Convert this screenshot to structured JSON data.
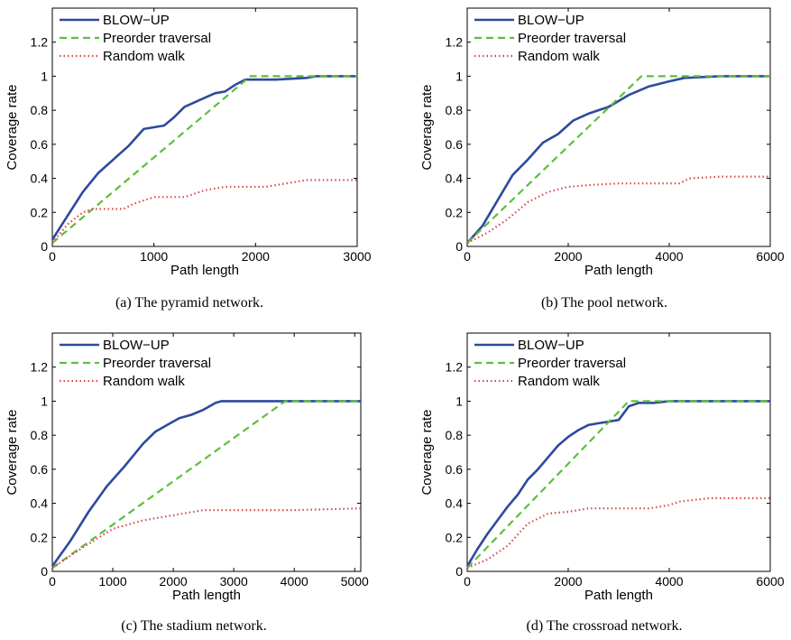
{
  "chart_data": [
    {
      "type": "line",
      "caption": "(a) The pyramid network.",
      "xlabel": "Path length",
      "ylabel": "Coverage rate",
      "xlim": [
        0,
        3000
      ],
      "ylim": [
        0,
        1.4
      ],
      "xticks": [
        0,
        1000,
        2000,
        3000
      ],
      "yticks": [
        0,
        0.2,
        0.4,
        0.6,
        0.8,
        1,
        1.2
      ],
      "grid": false,
      "legend": "top-left",
      "series": [
        {
          "name": "BLOW−UP",
          "color": "#2e4a9e",
          "style": "solid",
          "x": [
            0,
            150,
            300,
            450,
            600,
            750,
            900,
            1000,
            1100,
            1200,
            1300,
            1450,
            1600,
            1700,
            1800,
            1900,
            2200,
            2500,
            2600,
            3000
          ],
          "y": [
            0.04,
            0.18,
            0.32,
            0.43,
            0.51,
            0.59,
            0.69,
            0.7,
            0.71,
            0.76,
            0.82,
            0.86,
            0.9,
            0.91,
            0.95,
            0.98,
            0.98,
            0.99,
            1.0,
            1.0
          ]
        },
        {
          "name": "Preorder traversal",
          "color": "#5cbf3a",
          "style": "dashed",
          "x": [
            0,
            1950,
            3000
          ],
          "y": [
            0.02,
            1.0,
            1.0
          ]
        },
        {
          "name": "Random walk",
          "color": "#d94a4a",
          "style": "dotted",
          "x": [
            0,
            150,
            300,
            400,
            500,
            700,
            800,
            1000,
            1300,
            1500,
            1700,
            2100,
            2300,
            2500,
            3000
          ],
          "y": [
            0.02,
            0.13,
            0.2,
            0.22,
            0.22,
            0.22,
            0.25,
            0.29,
            0.29,
            0.33,
            0.35,
            0.35,
            0.37,
            0.39,
            0.39
          ]
        }
      ]
    },
    {
      "type": "line",
      "caption": "(b) The pool network.",
      "xlabel": "Path length",
      "ylabel": "Coverage rate",
      "xlim": [
        0,
        6000
      ],
      "ylim": [
        0,
        1.4
      ],
      "xticks": [
        0,
        2000,
        4000,
        6000
      ],
      "yticks": [
        0,
        0.2,
        0.4,
        0.6,
        0.8,
        1,
        1.2
      ],
      "grid": false,
      "legend": "top-left",
      "series": [
        {
          "name": "BLOW−UP",
          "color": "#2e4a9e",
          "style": "solid",
          "x": [
            0,
            300,
            600,
            900,
            1200,
            1500,
            1800,
            2100,
            2400,
            2800,
            3200,
            3600,
            4000,
            4300,
            5000,
            6000
          ],
          "y": [
            0.02,
            0.12,
            0.27,
            0.42,
            0.51,
            0.61,
            0.66,
            0.74,
            0.78,
            0.82,
            0.89,
            0.94,
            0.97,
            0.99,
            1.0,
            1.0
          ]
        },
        {
          "name": "Preorder traversal",
          "color": "#5cbf3a",
          "style": "dashed",
          "x": [
            0,
            3450,
            6000
          ],
          "y": [
            0.02,
            1.0,
            1.0
          ]
        },
        {
          "name": "Random walk",
          "color": "#d94a4a",
          "style": "dotted",
          "x": [
            0,
            400,
            800,
            1200,
            1600,
            2000,
            2400,
            3000,
            3600,
            4200,
            4400,
            5000,
            6000
          ],
          "y": [
            0.02,
            0.08,
            0.16,
            0.26,
            0.32,
            0.35,
            0.36,
            0.37,
            0.37,
            0.37,
            0.4,
            0.41,
            0.41
          ]
        }
      ]
    },
    {
      "type": "line",
      "caption": "(c) The stadium network.",
      "xlabel": "Path length",
      "ylabel": "Coverage rate",
      "xlim": [
        0,
        5100
      ],
      "ylim": [
        0,
        1.4
      ],
      "xticks": [
        0,
        1000,
        2000,
        3000,
        4000,
        5000
      ],
      "yticks": [
        0,
        0.2,
        0.4,
        0.6,
        0.8,
        1,
        1.2
      ],
      "grid": false,
      "legend": "top-left",
      "series": [
        {
          "name": "BLOW−UP",
          "color": "#2e4a9e",
          "style": "solid",
          "x": [
            0,
            300,
            600,
            900,
            1200,
            1500,
            1700,
            1900,
            2100,
            2300,
            2500,
            2700,
            2800,
            5100
          ],
          "y": [
            0.03,
            0.18,
            0.35,
            0.5,
            0.62,
            0.75,
            0.82,
            0.86,
            0.9,
            0.92,
            0.95,
            0.99,
            1.0,
            1.0
          ]
        },
        {
          "name": "Preorder traversal",
          "color": "#5cbf3a",
          "style": "dashed",
          "x": [
            0,
            3850,
            5100
          ],
          "y": [
            0.02,
            1.0,
            1.0
          ]
        },
        {
          "name": "Random walk",
          "color": "#d94a4a",
          "style": "dotted",
          "x": [
            0,
            500,
            1000,
            1500,
            2000,
            2500,
            3000,
            4000,
            5100
          ],
          "y": [
            0.02,
            0.14,
            0.25,
            0.3,
            0.33,
            0.36,
            0.36,
            0.36,
            0.37
          ]
        }
      ]
    },
    {
      "type": "line",
      "caption": "(d) The crossroad network.",
      "xlabel": "Path length",
      "ylabel": "Coverage rate",
      "xlim": [
        0,
        6000
      ],
      "ylim": [
        0,
        1.4
      ],
      "xticks": [
        0,
        2000,
        4000,
        6000
      ],
      "yticks": [
        0,
        0.2,
        0.4,
        0.6,
        0.8,
        1,
        1.2
      ],
      "grid": false,
      "legend": "top-left",
      "series": [
        {
          "name": "BLOW−UP",
          "color": "#2e4a9e",
          "style": "solid",
          "x": [
            0,
            200,
            400,
            600,
            800,
            1000,
            1200,
            1400,
            1600,
            1800,
            2000,
            2200,
            2400,
            2600,
            2800,
            3000,
            3200,
            3400,
            3700,
            4000,
            6000
          ],
          "y": [
            0.03,
            0.13,
            0.22,
            0.3,
            0.38,
            0.45,
            0.54,
            0.6,
            0.67,
            0.74,
            0.79,
            0.83,
            0.86,
            0.87,
            0.88,
            0.89,
            0.97,
            0.99,
            0.99,
            1.0,
            1.0
          ]
        },
        {
          "name": "Preorder traversal",
          "color": "#5cbf3a",
          "style": "dashed",
          "x": [
            0,
            3200,
            6000
          ],
          "y": [
            0.02,
            1.0,
            1.0
          ]
        },
        {
          "name": "Random walk",
          "color": "#d94a4a",
          "style": "dotted",
          "x": [
            0,
            400,
            800,
            1200,
            1600,
            2000,
            2400,
            3000,
            3600,
            4000,
            4200,
            4800,
            6000
          ],
          "y": [
            0.02,
            0.07,
            0.15,
            0.28,
            0.34,
            0.35,
            0.37,
            0.37,
            0.37,
            0.39,
            0.41,
            0.43,
            0.43
          ]
        }
      ]
    }
  ]
}
